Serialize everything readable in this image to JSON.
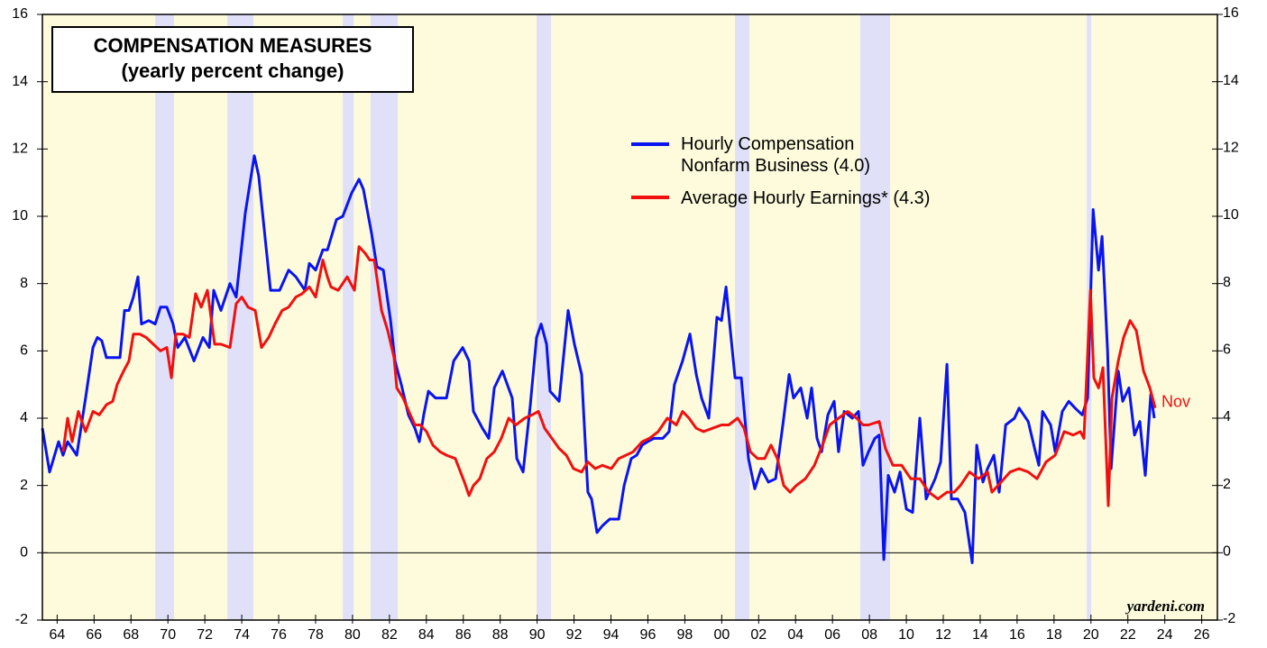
{
  "chart_data": {
    "type": "line",
    "title": "COMPENSATION MEASURES\n(yearly percent change)",
    "source": "yardeni.com",
    "annotation": "Nov",
    "xlim": [
      1963.7,
      2027.35
    ],
    "ylim": [
      -2,
      16
    ],
    "yticks": [
      -2,
      0,
      2,
      4,
      6,
      8,
      10,
      12,
      14,
      16
    ],
    "xticks": [
      {
        "value": 1964.5,
        "label": "64"
      },
      {
        "value": 1966.5,
        "label": "66"
      },
      {
        "value": 1968.5,
        "label": "68"
      },
      {
        "value": 1970.5,
        "label": "70"
      },
      {
        "value": 1972.5,
        "label": "72"
      },
      {
        "value": 1974.5,
        "label": "74"
      },
      {
        "value": 1976.5,
        "label": "76"
      },
      {
        "value": 1978.5,
        "label": "78"
      },
      {
        "value": 1980.5,
        "label": "80"
      },
      {
        "value": 1982.5,
        "label": "82"
      },
      {
        "value": 1984.5,
        "label": "84"
      },
      {
        "value": 1986.5,
        "label": "86"
      },
      {
        "value": 1988.5,
        "label": "88"
      },
      {
        "value": 1990.5,
        "label": "90"
      },
      {
        "value": 1992.5,
        "label": "92"
      },
      {
        "value": 1994.5,
        "label": "94"
      },
      {
        "value": 1996.5,
        "label": "96"
      },
      {
        "value": 1998.5,
        "label": "98"
      },
      {
        "value": 2000.5,
        "label": "00"
      },
      {
        "value": 2002.5,
        "label": "02"
      },
      {
        "value": 2004.5,
        "label": "04"
      },
      {
        "value": 2006.5,
        "label": "06"
      },
      {
        "value": 2008.5,
        "label": "08"
      },
      {
        "value": 2010.5,
        "label": "10"
      },
      {
        "value": 2012.5,
        "label": "12"
      },
      {
        "value": 2014.5,
        "label": "14"
      },
      {
        "value": 2016.5,
        "label": "16"
      },
      {
        "value": 2018.5,
        "label": "18"
      },
      {
        "value": 2020.5,
        "label": "20"
      },
      {
        "value": 2022.5,
        "label": "22"
      },
      {
        "value": 2024.5,
        "label": "24"
      },
      {
        "value": 2026.5,
        "label": "26"
      }
    ],
    "shaded_periods": [
      [
        1969.81,
        1970.83
      ],
      [
        1973.72,
        1975.13
      ],
      [
        1979.97,
        1980.56
      ],
      [
        1981.48,
        1982.95
      ],
      [
        1990.47,
        1991.25
      ],
      [
        2001.22,
        2002.0
      ],
      [
        2008.0,
        2009.62
      ],
      [
        2020.27,
        2020.52
      ]
    ],
    "shade_color": "#e0e0f8",
    "background": "#fdfbdc",
    "zero_line": true,
    "series": [
      {
        "name": "Hourly Compensation\nNonfarm Business (4.0)",
        "color": "#0a14f0",
        "x": [
          1963.7,
          1964.09,
          1964.58,
          1964.82,
          1965.07,
          1965.56,
          1966.04,
          1966.44,
          1966.68,
          1966.92,
          1967.17,
          1967.66,
          1967.9,
          1968.15,
          1968.39,
          1968.63,
          1968.88,
          1969.07,
          1969.46,
          1969.81,
          1970.1,
          1970.44,
          1970.78,
          1971.03,
          1971.42,
          1971.91,
          1972.4,
          1972.74,
          1972.98,
          1973.37,
          1973.86,
          1974.2,
          1974.69,
          1975.18,
          1975.42,
          1976.06,
          1976.55,
          1977.04,
          1977.43,
          1977.92,
          1978.16,
          1978.5,
          1978.89,
          1979.14,
          1979.63,
          1979.97,
          1980.46,
          1980.85,
          1981.09,
          1981.53,
          1981.82,
          1982.17,
          1982.56,
          1982.8,
          1983.14,
          1983.53,
          1983.88,
          1984.12,
          1984.36,
          1984.61,
          1985.0,
          1985.34,
          1985.59,
          1985.98,
          1986.47,
          1986.81,
          1987.05,
          1987.54,
          1987.88,
          1988.18,
          1988.62,
          1989.15,
          1989.4,
          1989.74,
          1990.13,
          1990.47,
          1990.72,
          1991.01,
          1991.2,
          1991.69,
          1992.18,
          1992.52,
          1992.91,
          1993.25,
          1993.45,
          1993.74,
          1994.03,
          1994.43,
          1994.92,
          1995.21,
          1995.6,
          1995.89,
          1996.19,
          1996.48,
          1996.82,
          1997.31,
          1997.65,
          1997.94,
          1998.38,
          1998.78,
          1999.12,
          1999.41,
          1999.8,
          2000.24,
          2000.49,
          2000.73,
          2001.22,
          2001.56,
          2001.95,
          2002.29,
          2002.64,
          2003.03,
          2003.42,
          2003.81,
          2004.15,
          2004.39,
          2004.78,
          2005.13,
          2005.37,
          2005.66,
          2005.91,
          2006.25,
          2006.59,
          2006.83,
          2007.13,
          2007.57,
          2007.91,
          2008.15,
          2008.45,
          2008.79,
          2009.03,
          2009.28,
          2009.52,
          2009.86,
          2010.16,
          2010.5,
          2010.84,
          2011.23,
          2011.57,
          2012.06,
          2012.36,
          2012.7,
          2012.94,
          2013.28,
          2013.67,
          2014.07,
          2014.31,
          2014.65,
          2014.9,
          2015.24,
          2015.53,
          2015.88,
          2016.36,
          2016.61,
          2017.1,
          2017.49,
          2017.68,
          2017.88,
          2018.32,
          2018.56,
          2018.95,
          2019.3,
          2019.64,
          2020.03,
          2020.32,
          2020.62,
          2020.91,
          2021.1,
          2021.4,
          2021.59,
          2021.98,
          2022.22,
          2022.56,
          2022.86,
          2023.15,
          2023.44,
          2023.74,
          2023.93
        ],
        "values": [
          3.7,
          2.4,
          3.3,
          2.9,
          3.3,
          2.9,
          4.6,
          6.1,
          6.4,
          6.3,
          5.8,
          5.8,
          5.8,
          7.2,
          7.2,
          7.6,
          8.2,
          6.8,
          6.9,
          6.8,
          7.3,
          7.3,
          6.8,
          6.1,
          6.4,
          5.7,
          6.4,
          6.1,
          7.8,
          7.2,
          8.0,
          7.6,
          10.1,
          11.8,
          11.2,
          7.8,
          7.8,
          8.4,
          8.2,
          7.8,
          8.6,
          8.4,
          9.0,
          9.0,
          9.9,
          10.0,
          10.7,
          11.1,
          10.8,
          9.5,
          8.5,
          8.4,
          6.9,
          5.7,
          5.0,
          4.1,
          3.7,
          3.3,
          4.1,
          4.8,
          4.6,
          4.6,
          4.6,
          5.7,
          6.1,
          5.7,
          4.2,
          3.7,
          3.4,
          4.9,
          5.4,
          4.6,
          2.8,
          2.4,
          4.4,
          6.4,
          6.8,
          6.2,
          4.8,
          4.5,
          7.2,
          6.2,
          5.3,
          1.8,
          1.6,
          0.6,
          0.8,
          1.0,
          1.0,
          2.0,
          2.8,
          2.9,
          3.2,
          3.3,
          3.4,
          3.4,
          3.6,
          5.0,
          5.7,
          6.5,
          5.3,
          4.6,
          4.0,
          7.0,
          6.9,
          7.9,
          5.2,
          5.2,
          2.8,
          1.9,
          2.5,
          2.1,
          2.2,
          3.8,
          5.3,
          4.6,
          4.9,
          4.0,
          4.9,
          3.4,
          3.0,
          4.1,
          4.5,
          3.0,
          4.2,
          4.0,
          4.2,
          2.6,
          3.0,
          3.4,
          3.5,
          -0.2,
          2.3,
          1.8,
          2.4,
          1.3,
          1.2,
          4.0,
          1.6,
          2.2,
          2.7,
          5.6,
          1.6,
          1.6,
          1.2,
          -0.3,
          3.2,
          2.1,
          2.5,
          2.9,
          1.8,
          3.8,
          4.0,
          4.3,
          3.9,
          3.0,
          2.6,
          4.2,
          3.8,
          3.0,
          4.2,
          4.5,
          4.3,
          4.1,
          4.6,
          10.2,
          8.4,
          9.4,
          6.0,
          2.5,
          5.4,
          4.5,
          4.9,
          3.5,
          3.9,
          2.3,
          4.7,
          4.0
        ]
      },
      {
        "name": "Average Hourly Earnings* (4.3)",
        "color": "#f01010",
        "x": [
          1964.82,
          1965.07,
          1965.31,
          1965.65,
          1966.04,
          1966.44,
          1966.78,
          1967.17,
          1967.51,
          1967.75,
          1968.1,
          1968.39,
          1968.63,
          1968.98,
          1969.32,
          1969.71,
          1970.1,
          1970.44,
          1970.69,
          1970.93,
          1971.32,
          1971.66,
          1972.0,
          1972.3,
          1972.64,
          1973.03,
          1973.37,
          1973.86,
          1974.2,
          1974.5,
          1974.84,
          1975.23,
          1975.57,
          1975.96,
          1976.3,
          1976.69,
          1977.04,
          1977.43,
          1977.77,
          1978.16,
          1978.5,
          1978.89,
          1979.14,
          1979.33,
          1979.72,
          1980.21,
          1980.6,
          1980.85,
          1981.19,
          1981.43,
          1981.68,
          1982.07,
          1982.41,
          1982.75,
          1982.9,
          1983.24,
          1983.63,
          1983.88,
          1984.17,
          1984.51,
          1984.85,
          1985.24,
          1985.59,
          1986.07,
          1986.56,
          1986.81,
          1987.05,
          1987.39,
          1987.78,
          1988.18,
          1988.56,
          1988.96,
          1989.35,
          1989.83,
          1990.23,
          1990.57,
          1990.91,
          1991.3,
          1991.69,
          1992.08,
          1992.47,
          1992.91,
          1993.25,
          1993.65,
          1994.03,
          1994.52,
          1994.92,
          1995.31,
          1995.7,
          1996.19,
          1996.58,
          1997.06,
          1997.55,
          1998.04,
          1998.38,
          1998.73,
          1999.12,
          1999.51,
          2000.0,
          2000.49,
          2000.88,
          2001.36,
          2001.71,
          2002.05,
          2002.44,
          2002.83,
          2003.17,
          2003.51,
          2003.86,
          2004.2,
          2004.54,
          2005.03,
          2005.52,
          2005.96,
          2006.35,
          2006.83,
          2007.32,
          2007.81,
          2008.15,
          2008.45,
          2009.03,
          2009.37,
          2009.77,
          2010.25,
          2010.74,
          2011.23,
          2011.72,
          2012.21,
          2012.7,
          2013.09,
          2013.43,
          2013.92,
          2014.41,
          2014.9,
          2015.14,
          2015.63,
          2016.12,
          2016.61,
          2017.1,
          2017.58,
          2018.07,
          2018.56,
          2019.05,
          2019.54,
          2019.93,
          2020.12,
          2020.47,
          2020.66,
          2020.91,
          2021.15,
          2021.44,
          2021.64,
          2021.98,
          2022.27,
          2022.62,
          2022.96,
          2023.35,
          2023.69,
          2023.98
        ],
        "values": [
          3.0,
          4.0,
          3.3,
          4.2,
          3.6,
          4.2,
          4.1,
          4.4,
          4.5,
          5.0,
          5.4,
          5.7,
          6.5,
          6.5,
          6.4,
          6.2,
          6.0,
          6.1,
          5.2,
          6.5,
          6.5,
          6.4,
          7.7,
          7.3,
          7.8,
          6.2,
          6.2,
          6.1,
          7.4,
          7.6,
          7.3,
          7.2,
          6.1,
          6.4,
          6.8,
          7.2,
          7.3,
          7.6,
          7.7,
          7.9,
          7.6,
          8.7,
          8.2,
          7.9,
          7.8,
          8.2,
          7.8,
          9.1,
          8.9,
          8.7,
          8.7,
          7.2,
          6.6,
          5.8,
          4.9,
          4.6,
          4.1,
          3.8,
          3.8,
          3.6,
          3.2,
          3.0,
          2.9,
          2.8,
          2.1,
          1.7,
          2.0,
          2.2,
          2.8,
          3.0,
          3.4,
          4.0,
          3.8,
          4.0,
          4.1,
          4.2,
          3.7,
          3.4,
          3.1,
          2.9,
          2.5,
          2.4,
          2.7,
          2.5,
          2.6,
          2.5,
          2.8,
          2.9,
          3.0,
          3.3,
          3.4,
          3.6,
          4.0,
          3.8,
          4.2,
          4.0,
          3.7,
          3.6,
          3.7,
          3.8,
          3.8,
          4.0,
          3.7,
          3.0,
          2.8,
          2.8,
          3.2,
          2.8,
          2.0,
          1.8,
          2.0,
          2.2,
          2.6,
          3.2,
          3.8,
          4.0,
          4.2,
          4.0,
          3.8,
          3.8,
          3.9,
          3.1,
          2.6,
          2.6,
          2.2,
          2.2,
          1.8,
          1.6,
          1.8,
          1.8,
          2.0,
          2.4,
          2.2,
          2.4,
          1.8,
          2.1,
          2.4,
          2.5,
          2.4,
          2.2,
          2.7,
          2.9,
          3.6,
          3.5,
          3.6,
          3.4,
          7.8,
          5.2,
          4.9,
          5.5,
          1.4,
          4.6,
          5.7,
          6.4,
          6.9,
          6.6,
          5.4,
          4.9,
          4.3
        ]
      }
    ]
  }
}
